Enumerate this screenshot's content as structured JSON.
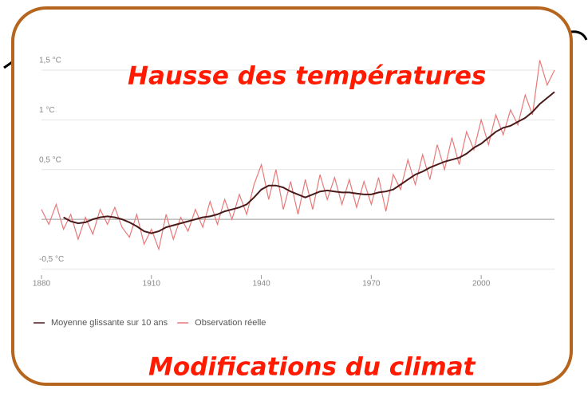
{
  "chart_data": {
    "type": "line",
    "title": "Hausse des températures",
    "subtitle": "Modifications du climat",
    "x": [
      1880,
      1882,
      1884,
      1886,
      1888,
      1890,
      1892,
      1894,
      1896,
      1898,
      1900,
      1902,
      1904,
      1906,
      1908,
      1910,
      1912,
      1914,
      1916,
      1918,
      1920,
      1922,
      1924,
      1926,
      1928,
      1930,
      1932,
      1934,
      1936,
      1938,
      1940,
      1942,
      1944,
      1946,
      1948,
      1950,
      1952,
      1954,
      1956,
      1958,
      1960,
      1962,
      1964,
      1966,
      1968,
      1970,
      1972,
      1974,
      1976,
      1978,
      1980,
      1982,
      1984,
      1986,
      1988,
      1990,
      1992,
      1994,
      1996,
      1998,
      2000,
      2002,
      2004,
      2006,
      2008,
      2010,
      2012,
      2014,
      2016,
      2018,
      2020
    ],
    "series": [
      {
        "name": "Observation réelle",
        "color": "#e8797a",
        "values": [
          0.1,
          -0.05,
          0.15,
          -0.1,
          0.05,
          -0.2,
          0.02,
          -0.15,
          0.1,
          -0.05,
          0.12,
          -0.08,
          -0.18,
          0.05,
          -0.25,
          -0.1,
          -0.3,
          0.05,
          -0.2,
          0.02,
          -0.12,
          0.1,
          -0.08,
          0.18,
          -0.05,
          0.2,
          0.0,
          0.25,
          0.05,
          0.35,
          0.55,
          0.2,
          0.5,
          0.1,
          0.38,
          0.05,
          0.4,
          0.1,
          0.45,
          0.2,
          0.42,
          0.15,
          0.4,
          0.12,
          0.38,
          0.15,
          0.42,
          0.08,
          0.45,
          0.3,
          0.6,
          0.35,
          0.65,
          0.4,
          0.75,
          0.5,
          0.82,
          0.55,
          0.88,
          0.7,
          1.0,
          0.75,
          1.05,
          0.85,
          1.1,
          0.95,
          1.25,
          1.05,
          1.6,
          1.35,
          1.5
        ]
      },
      {
        "name": "Moyenne glissante sur 10 ans",
        "color": "#4a1a1a",
        "values": [
          null,
          null,
          null,
          0.02,
          -0.02,
          -0.04,
          -0.03,
          0.0,
          0.02,
          0.03,
          0.02,
          0.0,
          -0.03,
          -0.07,
          -0.12,
          -0.14,
          -0.12,
          -0.08,
          -0.06,
          -0.04,
          -0.02,
          0.0,
          0.02,
          0.03,
          0.05,
          0.08,
          0.1,
          0.12,
          0.15,
          0.22,
          0.3,
          0.34,
          0.34,
          0.32,
          0.28,
          0.25,
          0.22,
          0.25,
          0.28,
          0.29,
          0.28,
          0.27,
          0.27,
          0.26,
          0.25,
          0.25,
          0.27,
          0.28,
          0.3,
          0.35,
          0.4,
          0.45,
          0.48,
          0.52,
          0.55,
          0.58,
          0.6,
          0.62,
          0.66,
          0.72,
          0.76,
          0.82,
          0.88,
          0.92,
          0.94,
          0.98,
          1.02,
          1.08,
          1.16,
          1.22,
          1.28
        ]
      }
    ],
    "xlim": [
      1880,
      2020
    ],
    "xticks": [
      1880,
      1910,
      1940,
      1970,
      2000
    ],
    "ylim": [
      -0.6,
      1.7
    ],
    "yticks": [
      {
        "value": -0.5,
        "label": "-0,5 °C"
      },
      {
        "value": 0.5,
        "label": "0,5 °C"
      },
      {
        "value": 1,
        "label": "1 °C"
      },
      {
        "value": 1.5,
        "label": "1,5 °C"
      }
    ],
    "grid": true
  }
}
